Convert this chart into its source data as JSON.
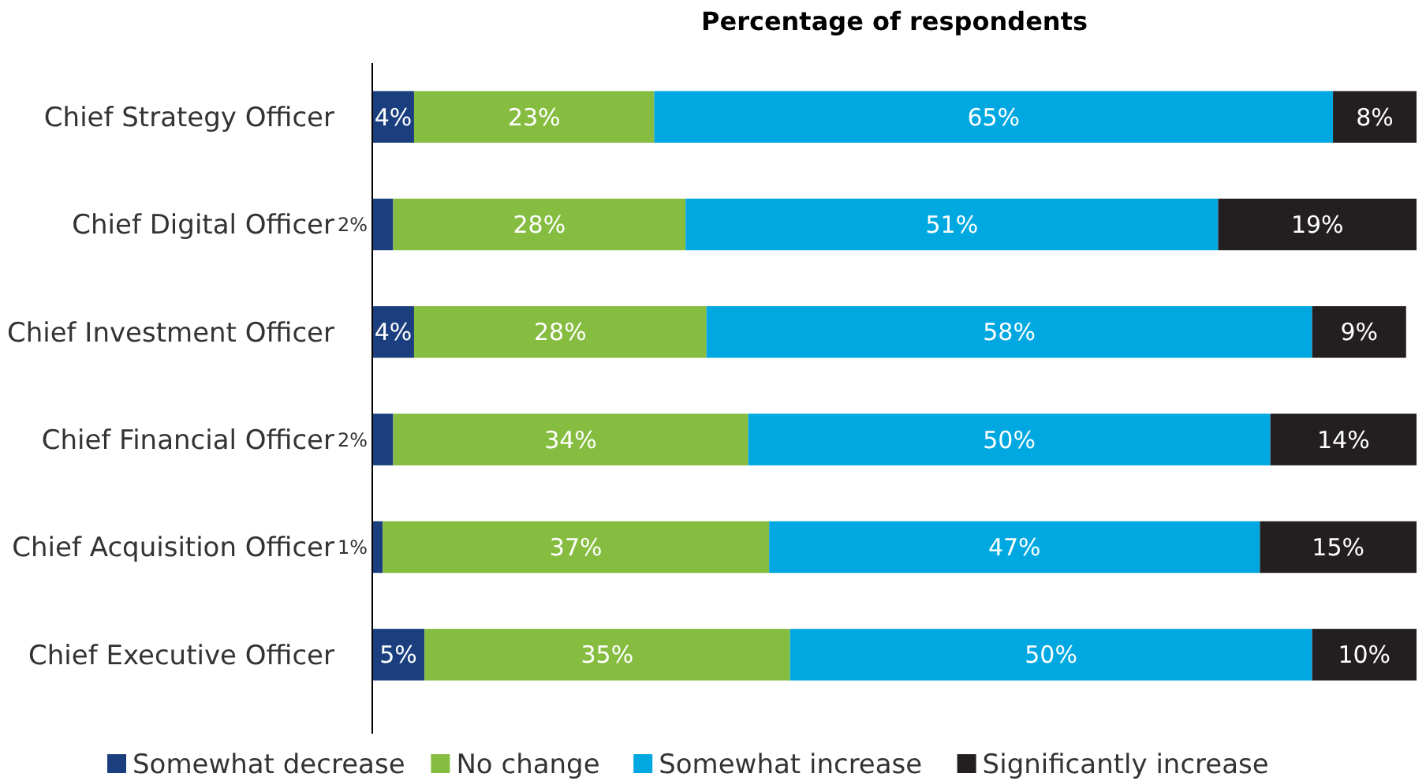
{
  "chart_data": {
    "type": "bar",
    "orientation": "horizontal",
    "stacked": true,
    "title": "Percentage of respondents",
    "categories": [
      "Chief Strategy Officer",
      "Chief Digital Officer",
      "Chief Investment Officer",
      "Chief Financial Officer",
      "Chief Acquisition Officer",
      "Chief Executive Officer"
    ],
    "series": [
      {
        "name": "Somewhat decrease",
        "color": "#1b3f7e",
        "values": [
          4,
          2,
          4,
          2,
          1,
          5
        ],
        "value_labels": [
          "4%",
          "2%",
          "4%",
          "2%",
          "1%",
          "5%"
        ]
      },
      {
        "name": "No change",
        "color": "#86bc40",
        "values": [
          23,
          28,
          28,
          34,
          37,
          35
        ],
        "value_labels": [
          "23%",
          "28%",
          "28%",
          "34%",
          "37%",
          "35%"
        ]
      },
      {
        "name": "Somewhat increase",
        "color": "#00a8e1",
        "values": [
          65,
          51,
          58,
          50,
          47,
          50
        ],
        "value_labels": [
          "65%",
          "51%",
          "58%",
          "50%",
          "47%",
          "50%"
        ]
      },
      {
        "name": "Significantly increase",
        "color": "#231f20",
        "values": [
          8,
          19,
          9,
          14,
          15,
          10
        ],
        "value_labels": [
          "8%",
          "19%",
          "9%",
          "14%",
          "15%",
          "10%"
        ]
      }
    ],
    "tick_labels": "y",
    "legend": "bottom"
  }
}
